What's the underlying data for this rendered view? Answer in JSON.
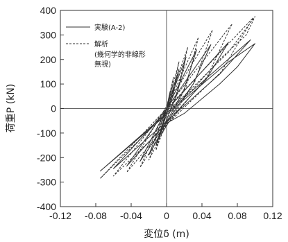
{
  "chart_data": {
    "type": "line",
    "xlabel": "変位δ (m)",
    "ylabel": "荷重P (kN)",
    "xlim": [
      -0.12,
      0.12
    ],
    "ylim": [
      -400,
      400
    ],
    "x_ticks": [
      "-0.12",
      "-0.08",
      "-0.04",
      "0",
      "0.04",
      "0.08",
      "0.12"
    ],
    "y_ticks": [
      "400",
      "300",
      "200",
      "100",
      "0",
      "-100",
      "-200",
      "-300",
      "-400"
    ],
    "grid": false,
    "legend_position": "top-left",
    "series": [
      {
        "name": "実験(A-2)",
        "style": "solid",
        "color": "#333333",
        "x": [
          0,
          0.004,
          -0.004,
          0,
          0.008,
          -0.008,
          0.006,
          0.014,
          -0.012,
          0.012,
          0.022,
          -0.02,
          0.02,
          0.034,
          -0.03,
          0.03,
          0.05,
          -0.045,
          0.045,
          0.07,
          -0.06,
          0.06,
          0.095,
          -0.075,
          0.07,
          0.1,
          0.08,
          0.06,
          0.04,
          0.02,
          0
        ],
        "y": [
          0,
          60,
          -60,
          0,
          110,
          -110,
          40,
          160,
          -150,
          60,
          210,
          -190,
          80,
          240,
          -215,
          100,
          260,
          -235,
          120,
          270,
          -245,
          140,
          280,
          -255,
          190,
          265,
          170,
          100,
          40,
          -20,
          -60
        ]
      },
      {
        "name": "解析 (幾何学的非線形無視)",
        "style": "dashed",
        "color": "#333333",
        "x": [
          0,
          0.004,
          -0.004,
          0,
          0.008,
          -0.008,
          0.006,
          0.014,
          -0.012,
          0.012,
          0.024,
          -0.02,
          0.022,
          0.036,
          -0.03,
          0.032,
          0.052,
          -0.045,
          0.046,
          0.074,
          -0.06,
          0.062,
          0.098,
          -0.075,
          0.07,
          0.1,
          0.09,
          0.06,
          0.03,
          0
        ],
        "y": [
          0,
          70,
          -70,
          0,
          130,
          -120,
          50,
          190,
          -170,
          70,
          250,
          -210,
          90,
          290,
          -240,
          110,
          320,
          -260,
          130,
          345,
          -275,
          150,
          370,
          -285,
          230,
          375,
          300,
          200,
          80,
          -10
        ]
      }
    ]
  }
}
